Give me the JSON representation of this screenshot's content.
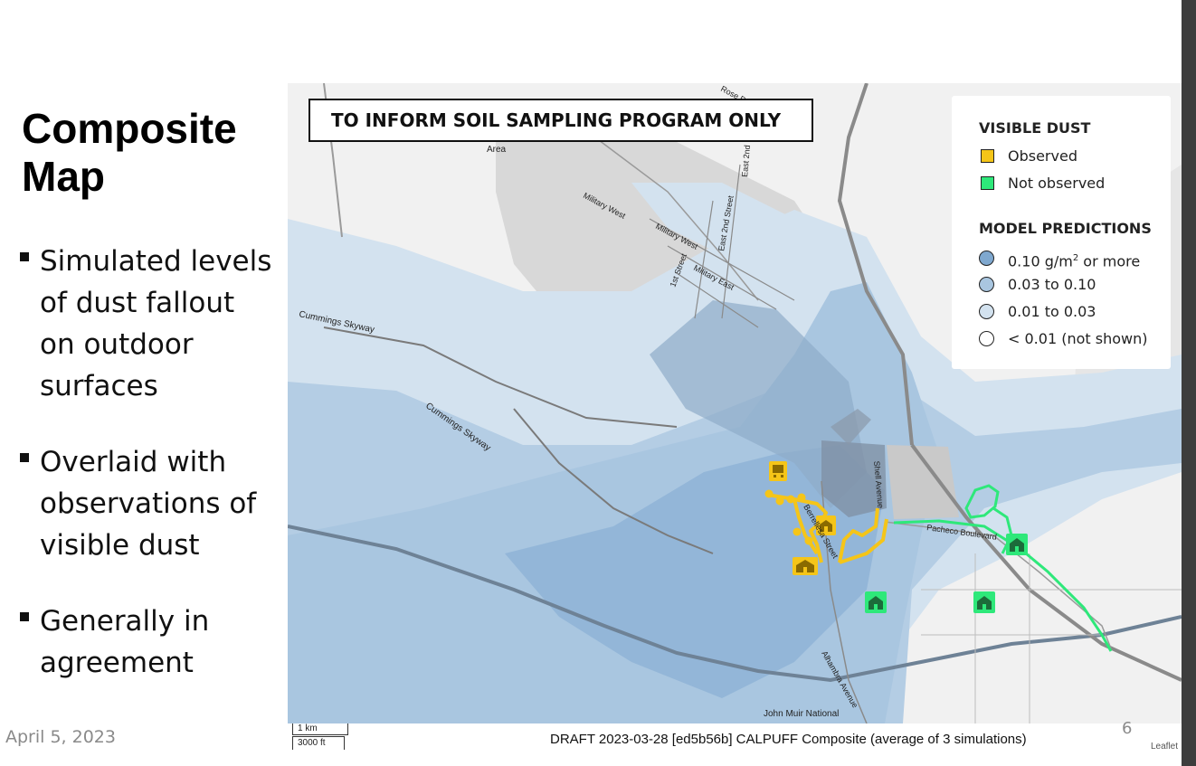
{
  "slide": {
    "title_line1": "Composite",
    "title_line2": "Map",
    "bullets": [
      {
        "line1": "Simulated levels",
        "line2": "of dust fallout",
        "line3": "on outdoor",
        "line4": "surfaces"
      },
      {
        "line1": "Overlaid with",
        "line2": "observations of",
        "line3": "visible dust"
      },
      {
        "line1": "Generally in",
        "line2": "agreement"
      }
    ],
    "date": "April 5, 2023",
    "page_number": "6"
  },
  "map": {
    "banner": "TO INFORM SOIL SAMPLING PROGRAM ONLY",
    "legend": {
      "visible_dust_title": "VISIBLE DUST",
      "observed": "Observed",
      "observed_color": "#f5c518",
      "not_observed": "Not observed",
      "not_observed_color": "#2ee87a",
      "model_title": "MODEL PREDICTIONS",
      "levels": [
        {
          "label_pre": "0.10 g/m",
          "sup": "2",
          "label_post": " or more",
          "color": "#7fa8cf"
        },
        {
          "label": "0.03 to 0.10",
          "color": "#a9c6e0"
        },
        {
          "label": "0.01 to 0.03",
          "color": "#d3e2ef"
        },
        {
          "label": "< 0.01 (not shown)",
          "color": "#ffffff"
        }
      ]
    },
    "road_labels": {
      "area": "Area",
      "rose": "Rose D",
      "east_2nd": "East 2nd",
      "east_2nd_street": "East 2nd Street",
      "military_west_1": "Military West",
      "military_west_2": "Military West",
      "military_east": "Military East",
      "first_street": "1st Street",
      "cummings_1": "Cummings Skyway",
      "cummings_2": "Cummings Skyway",
      "shell_avenue": "Shell Avenue",
      "pacheco": "Pacheco Boulevard",
      "berrellesa": "Berrellesa Street",
      "alhambra": "Alhambra Avenue",
      "john_muir": "John Muir National"
    },
    "scale_km": "1 km",
    "scale_ft": "3000 ft",
    "caption": "DRAFT 2023-03-28 [ed5b56b]  CALPUFF Composite (average of 3 simulations)",
    "attribution": "Leaflet"
  },
  "icons": [
    "school-icon",
    "train-icon"
  ]
}
